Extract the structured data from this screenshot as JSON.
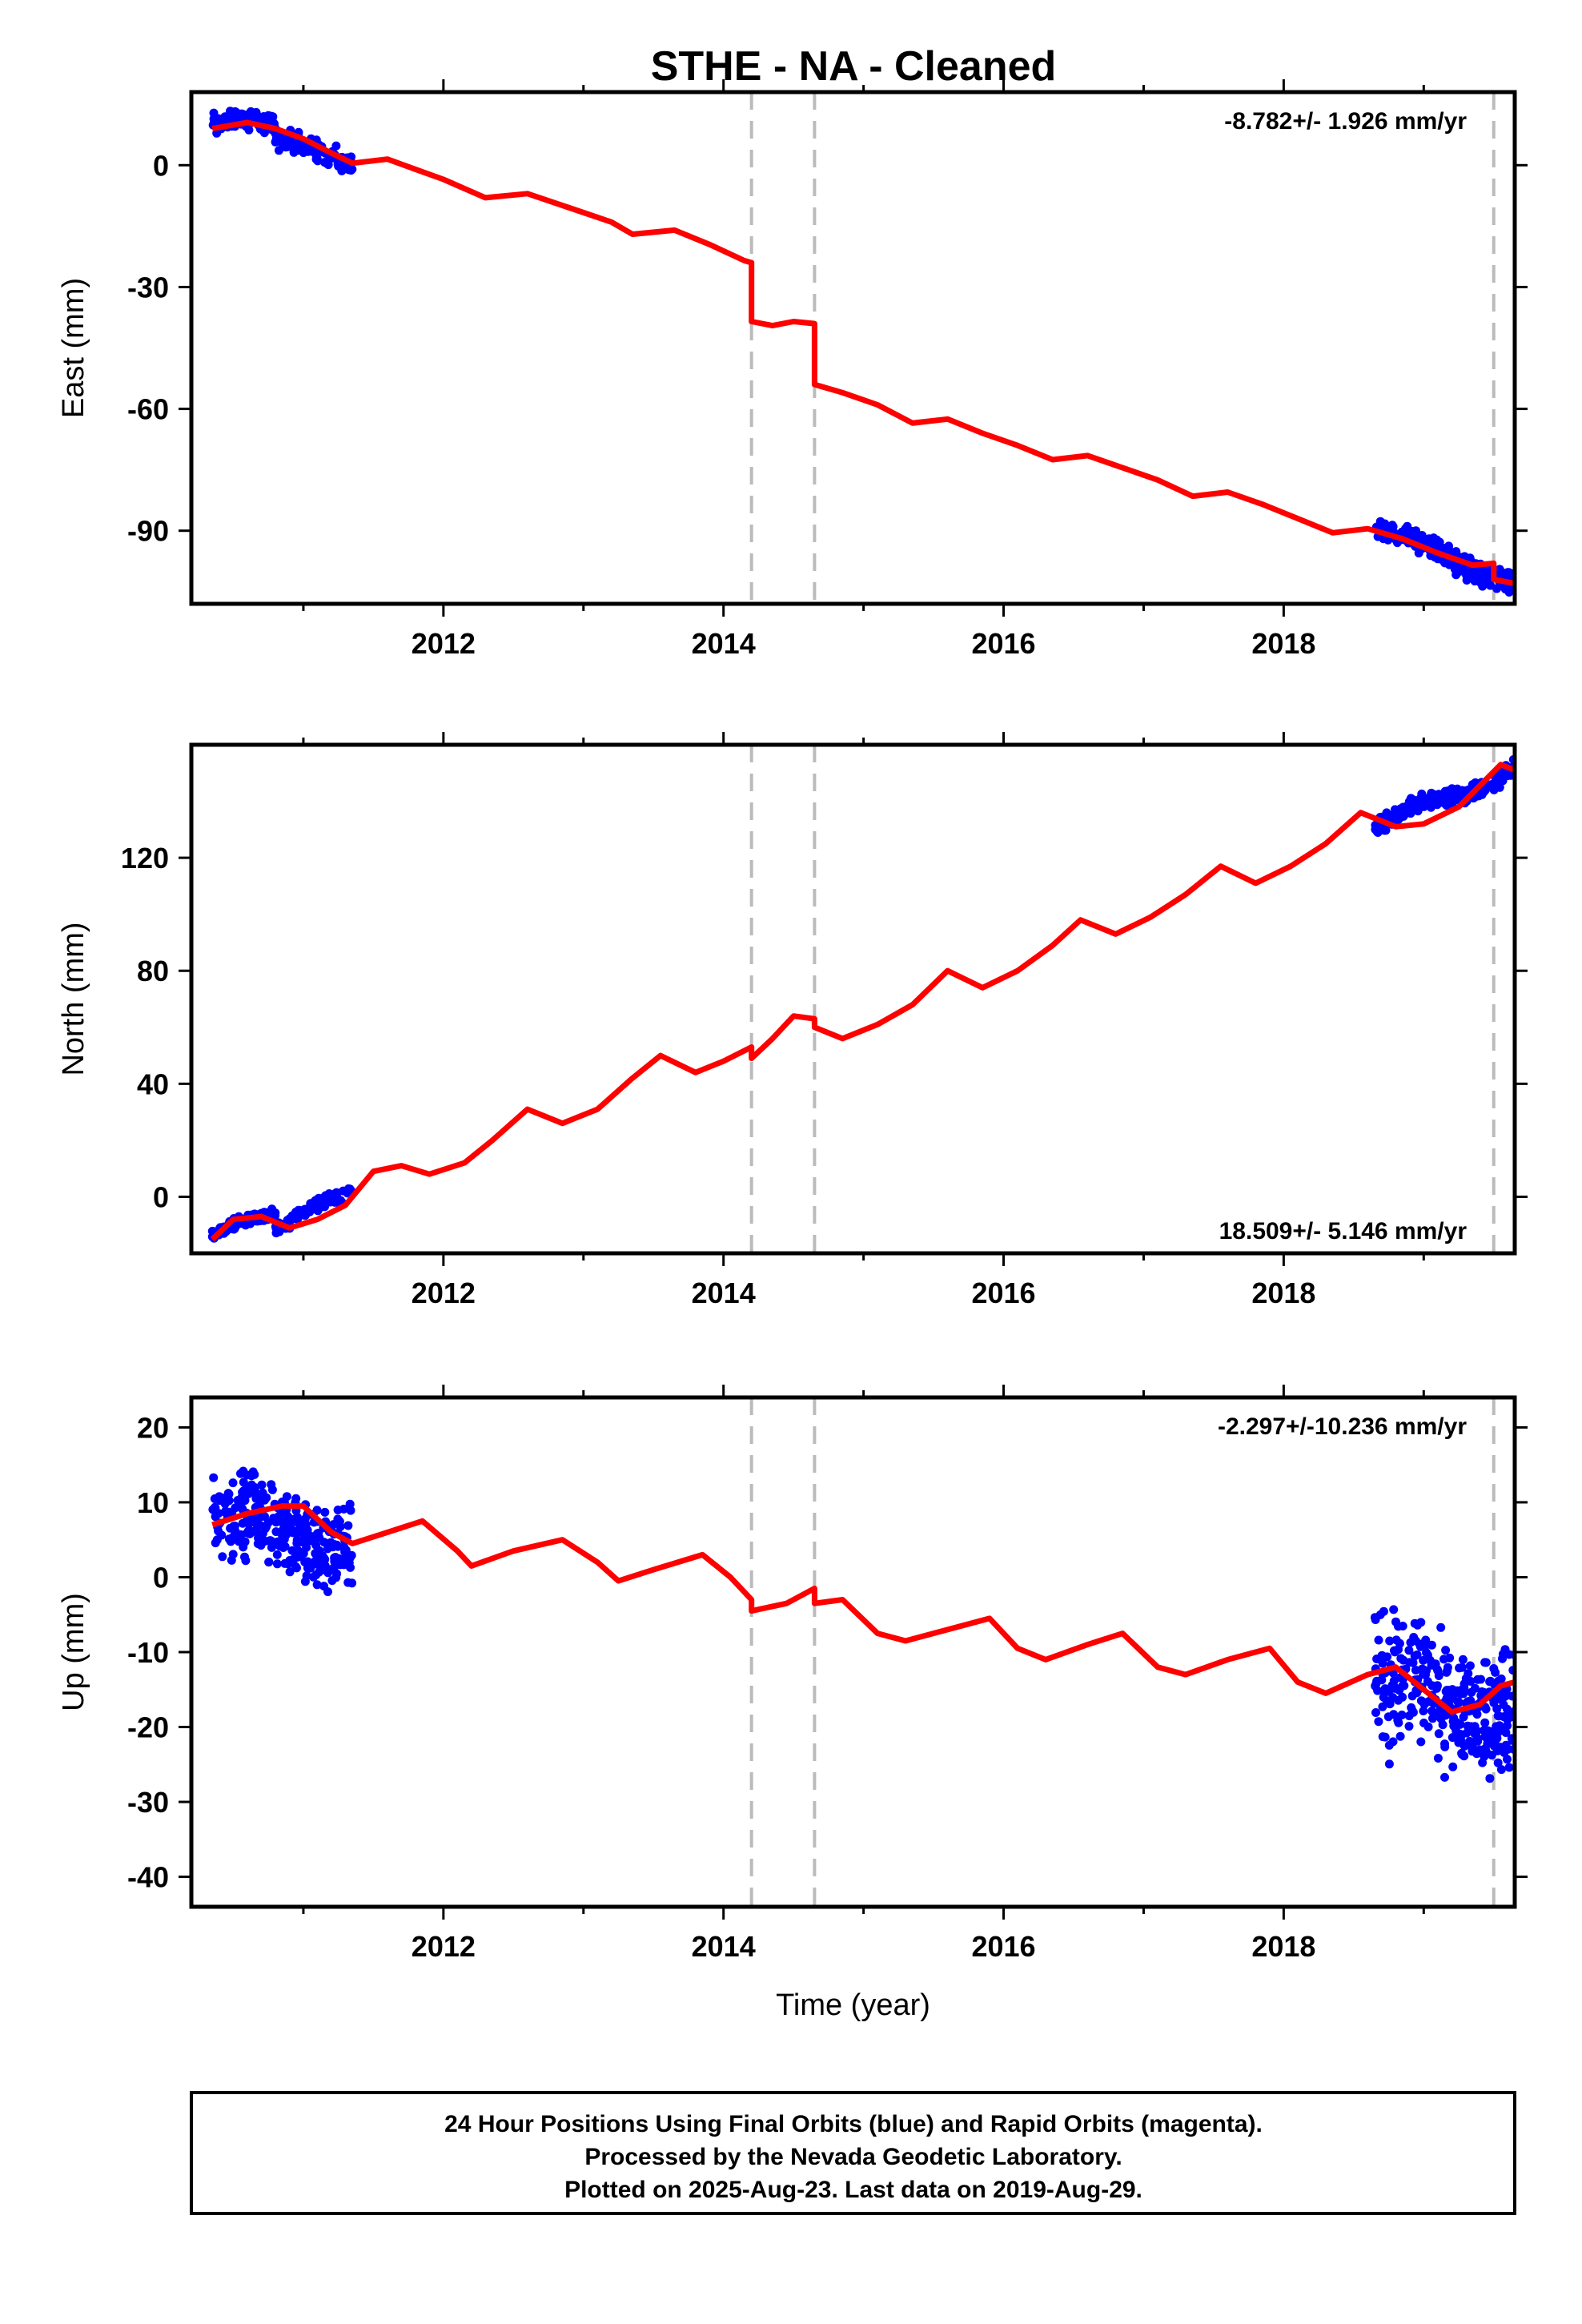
{
  "title": "STHE  - NA - Cleaned",
  "colors": {
    "data": "#0000ff",
    "model": "#ff0000",
    "event": "#bbbbbb",
    "frame": "#000000"
  },
  "chart_data": [
    {
      "type": "scatter",
      "ylabel": "East (mm)",
      "xlabel": "",
      "xlim": [
        2010.2,
        2019.65
      ],
      "ylim": [
        -108,
        18
      ],
      "y_ticks": [
        0,
        -30,
        -60,
        -90
      ],
      "x_ticks": [
        2012,
        2014,
        2016,
        2018
      ],
      "x_tick_labels": [
        "2012",
        "2014",
        "2016",
        "2018"
      ],
      "rate_label": "-8.782+/- 1.926 mm/yr",
      "rate_position": "top-right",
      "events": [
        2014.2,
        2014.65,
        2019.5
      ],
      "series": [
        {
          "kind": "points",
          "segments": [
            {
              "x0": 2010.35,
              "x1": 2010.8,
              "n": 120,
              "slope": -2,
              "offset": 10.5,
              "amp": 1.2,
              "noise": 1.8,
              "seed": 11
            },
            {
              "x0": 2010.8,
              "x1": 2011.35,
              "n": 110,
              "slope": -12,
              "offset": 6.5,
              "amp": 1.0,
              "noise": 2.2,
              "seed": 12
            },
            {
              "x0": 2018.65,
              "x1": 2019.65,
              "n": 260,
              "slope": -12,
              "offset": -90,
              "amp": 1.5,
              "noise": 2.2,
              "seed": 13
            }
          ]
        },
        {
          "kind": "line",
          "name": "",
          "points": [
            [
              2010.35,
              9
            ],
            [
              2010.6,
              10.5
            ],
            [
              2010.8,
              9
            ],
            [
              2011.0,
              6.5
            ],
            [
              2011.2,
              3
            ],
            [
              2011.35,
              0.5
            ],
            [
              2011.6,
              1.5
            ],
            [
              2011.8,
              -1
            ],
            [
              2012.0,
              -3.5
            ],
            [
              2012.3,
              -8
            ],
            [
              2012.6,
              -7
            ],
            [
              2012.9,
              -10.5
            ],
            [
              2013.2,
              -14
            ],
            [
              2013.35,
              -17
            ],
            [
              2013.65,
              -16
            ],
            [
              2013.9,
              -19.5
            ],
            [
              2014.15,
              -23.5
            ],
            [
              2014.2,
              -24
            ],
            [
              2014.2,
              -38.5
            ],
            [
              2014.35,
              -39.5
            ],
            [
              2014.5,
              -38.5
            ],
            [
              2014.65,
              -39
            ],
            [
              2014.65,
              -54
            ],
            [
              2014.85,
              -56
            ],
            [
              2015.1,
              -59
            ],
            [
              2015.35,
              -63.5
            ],
            [
              2015.6,
              -62.5
            ],
            [
              2015.85,
              -66
            ],
            [
              2016.1,
              -69
            ],
            [
              2016.35,
              -72.5
            ],
            [
              2016.6,
              -71.5
            ],
            [
              2016.85,
              -74.5
            ],
            [
              2017.1,
              -77.5
            ],
            [
              2017.35,
              -81.5
            ],
            [
              2017.6,
              -80.5
            ],
            [
              2017.85,
              -83.5
            ],
            [
              2018.1,
              -87
            ],
            [
              2018.35,
              -90.5
            ],
            [
              2018.6,
              -89.5
            ],
            [
              2018.85,
              -92
            ],
            [
              2019.1,
              -95.5
            ],
            [
              2019.35,
              -98.5
            ],
            [
              2019.5,
              -98
            ],
            [
              2019.5,
              -102
            ],
            [
              2019.65,
              -103
            ]
          ]
        }
      ]
    },
    {
      "type": "scatter",
      "ylabel": "North (mm)",
      "xlabel": "",
      "xlim": [
        2010.2,
        2019.65
      ],
      "ylim": [
        -20,
        160
      ],
      "y_ticks": [
        120,
        80,
        40,
        0
      ],
      "x_ticks": [
        2012,
        2014,
        2016,
        2018
      ],
      "x_tick_labels": [
        "2012",
        "2014",
        "2016",
        "2018"
      ],
      "rate_label": "18.509+/- 5.146 mm/yr",
      "rate_position": "bottom-right",
      "events": [
        2014.2,
        2014.65,
        2019.5
      ],
      "series": [
        {
          "kind": "points",
          "segments": [
            {
              "x0": 2010.35,
              "x1": 2010.8,
              "n": 110,
              "slope": 14,
              "offset": -13,
              "amp": 1.5,
              "noise": 1.5,
              "seed": 21
            },
            {
              "x0": 2010.8,
              "x1": 2011.35,
              "n": 110,
              "slope": 26,
              "offset": -12,
              "amp": 1.5,
              "noise": 2.0,
              "seed": 22
            },
            {
              "x0": 2018.65,
              "x1": 2019.65,
              "n": 260,
              "slope": 22,
              "offset": 130,
              "amp": 2.5,
              "noise": 2.5,
              "seed": 23
            }
          ]
        },
        {
          "kind": "line",
          "name": "",
          "points": [
            [
              2010.35,
              -15
            ],
            [
              2010.5,
              -8
            ],
            [
              2010.7,
              -7
            ],
            [
              2010.9,
              -11
            ],
            [
              2011.1,
              -8
            ],
            [
              2011.3,
              -3
            ],
            [
              2011.5,
              9
            ],
            [
              2011.7,
              11
            ],
            [
              2011.9,
              8
            ],
            [
              2012.15,
              12
            ],
            [
              2012.35,
              20
            ],
            [
              2012.6,
              31
            ],
            [
              2012.85,
              26
            ],
            [
              2013.1,
              31
            ],
            [
              2013.35,
              42
            ],
            [
              2013.55,
              50
            ],
            [
              2013.8,
              44
            ],
            [
              2014.0,
              48
            ],
            [
              2014.2,
              53
            ],
            [
              2014.2,
              49
            ],
            [
              2014.35,
              56
            ],
            [
              2014.5,
              64
            ],
            [
              2014.65,
              63
            ],
            [
              2014.65,
              60
            ],
            [
              2014.85,
              56
            ],
            [
              2015.1,
              61
            ],
            [
              2015.35,
              68
            ],
            [
              2015.6,
              80
            ],
            [
              2015.85,
              74
            ],
            [
              2016.1,
              80
            ],
            [
              2016.35,
              89
            ],
            [
              2016.55,
              98
            ],
            [
              2016.8,
              93
            ],
            [
              2017.05,
              99
            ],
            [
              2017.3,
              107
            ],
            [
              2017.55,
              117
            ],
            [
              2017.8,
              111
            ],
            [
              2018.05,
              117
            ],
            [
              2018.3,
              125
            ],
            [
              2018.55,
              136
            ],
            [
              2018.8,
              131
            ],
            [
              2019.0,
              132
            ],
            [
              2019.25,
              138
            ],
            [
              2019.45,
              148
            ],
            [
              2019.55,
              153
            ],
            [
              2019.65,
              151
            ]
          ]
        }
      ]
    },
    {
      "type": "scatter",
      "ylabel": "Up (mm)",
      "xlabel": "Time (year)",
      "xlim": [
        2010.2,
        2019.65
      ],
      "ylim": [
        -44,
        24
      ],
      "y_ticks": [
        20,
        10,
        0,
        -10,
        -20,
        -30,
        -40
      ],
      "x_ticks": [
        2012,
        2014,
        2016,
        2018
      ],
      "x_tick_labels": [
        "2012",
        "2014",
        "2016",
        "2018"
      ],
      "rate_label": "-2.297+/-10.236 mm/yr",
      "rate_position": "top-right",
      "events": [
        2014.2,
        2014.65,
        2019.5
      ],
      "series": [
        {
          "kind": "points",
          "segments": [
            {
              "x0": 2010.35,
              "x1": 2011.35,
              "n": 320,
              "slope": -3,
              "offset": 8,
              "amp": 1.5,
              "noise": 4.5,
              "seed": 31
            },
            {
              "x0": 2018.65,
              "x1": 2019.65,
              "n": 330,
              "slope": -2,
              "offset": -15,
              "amp": 2.0,
              "noise": 7.0,
              "seed": 32
            }
          ]
        },
        {
          "kind": "line",
          "name": "",
          "points": [
            [
              2010.35,
              7
            ],
            [
              2010.6,
              8.5
            ],
            [
              2010.85,
              9.5
            ],
            [
              2011.0,
              9.5
            ],
            [
              2011.2,
              6
            ],
            [
              2011.35,
              4.5
            ],
            [
              2011.6,
              6
            ],
            [
              2011.85,
              7.5
            ],
            [
              2012.1,
              3.5
            ],
            [
              2012.2,
              1.5
            ],
            [
              2012.5,
              3.5
            ],
            [
              2012.85,
              5
            ],
            [
              2013.1,
              2
            ],
            [
              2013.25,
              -0.5
            ],
            [
              2013.5,
              1
            ],
            [
              2013.85,
              3
            ],
            [
              2014.05,
              0
            ],
            [
              2014.2,
              -3
            ],
            [
              2014.2,
              -4.5
            ],
            [
              2014.45,
              -3.5
            ],
            [
              2014.65,
              -1.5
            ],
            [
              2014.65,
              -3.5
            ],
            [
              2014.85,
              -3
            ],
            [
              2015.1,
              -7.5
            ],
            [
              2015.3,
              -8.5
            ],
            [
              2015.6,
              -7
            ],
            [
              2015.9,
              -5.5
            ],
            [
              2016.1,
              -9.5
            ],
            [
              2016.3,
              -11
            ],
            [
              2016.6,
              -9
            ],
            [
              2016.85,
              -7.5
            ],
            [
              2017.1,
              -12
            ],
            [
              2017.3,
              -13
            ],
            [
              2017.6,
              -11
            ],
            [
              2017.9,
              -9.5
            ],
            [
              2018.1,
              -14
            ],
            [
              2018.3,
              -15.5
            ],
            [
              2018.6,
              -13
            ],
            [
              2018.8,
              -12
            ],
            [
              2019.0,
              -15
            ],
            [
              2019.2,
              -18
            ],
            [
              2019.4,
              -17
            ],
            [
              2019.55,
              -14.5
            ],
            [
              2019.65,
              -14
            ]
          ]
        }
      ]
    }
  ],
  "footer": {
    "line1": "24 Hour Positions Using Final Orbits (blue) and Rapid Orbits (magenta).",
    "line2": "Processed by the Nevada Geodetic Laboratory.",
    "line3": "Plotted on 2025-Aug-23. Last data on 2019-Aug-29."
  }
}
